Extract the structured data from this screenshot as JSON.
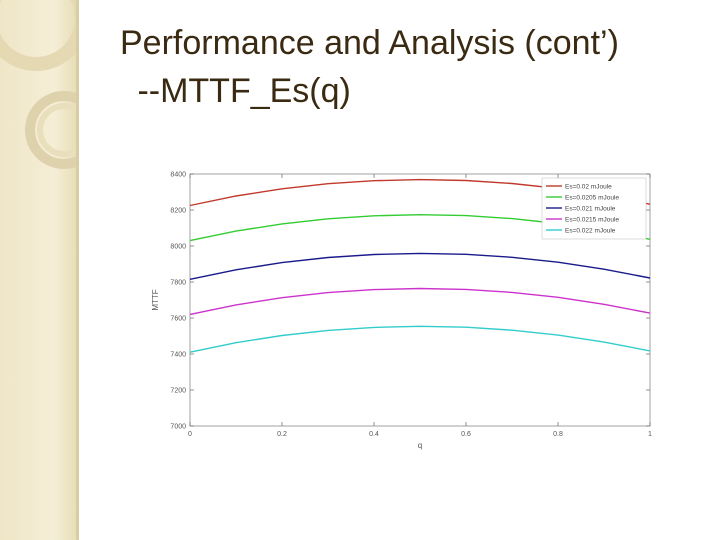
{
  "slide": {
    "title": "Performance and Analysis (cont’)",
    "subtitle": " --MTTF_Es(q)"
  },
  "theme": {
    "sidebar_color": "#f2ead0",
    "title_color": "#3b2a12"
  },
  "chart_data": {
    "type": "line",
    "title": "",
    "xlabel": "q",
    "ylabel": "MTTF",
    "xlim": [
      0,
      1
    ],
    "ylim": [
      7000,
      8400
    ],
    "xticks": [
      0,
      0.2,
      0.4,
      0.6,
      0.8,
      1
    ],
    "xtick_labels": [
      "0",
      "0.2",
      "0.4",
      "0.6",
      "0.8",
      "1"
    ],
    "yticks": [
      7000,
      7200,
      7400,
      7600,
      7800,
      8000,
      8200,
      8400
    ],
    "ytick_labels": [
      "7000",
      "7200",
      "7400",
      "7600",
      "7800",
      "8000",
      "8200",
      "8400"
    ],
    "grid": false,
    "legend": "top-right",
    "x": [
      0,
      0.1,
      0.2,
      0.3,
      0.4,
      0.5,
      0.6,
      0.7,
      0.8,
      0.9,
      1.0
    ],
    "series": [
      {
        "name": "Es=0.02 mJoule",
        "color": "#c0392b",
        "values": [
          8225,
          8278,
          8318,
          8346,
          8363,
          8369,
          8364,
          8347,
          8320,
          8281,
          8232
        ]
      },
      {
        "name": "Es=0.0205 mJoule",
        "color": "#33cc33",
        "values": [
          8030,
          8083,
          8123,
          8151,
          8168,
          8174,
          8169,
          8152,
          8125,
          8086,
          8037
        ]
      },
      {
        "name": "Es=0.021 mJoule",
        "color": "#1a1a8c",
        "values": [
          7815,
          7868,
          7908,
          7936,
          7953,
          7959,
          7954,
          7937,
          7910,
          7871,
          7822
        ]
      },
      {
        "name": "Es=0.0215 mJoule",
        "color": "#cc33cc",
        "values": [
          7620,
          7673,
          7713,
          7741,
          7758,
          7764,
          7759,
          7742,
          7715,
          7676,
          7627
        ]
      },
      {
        "name": "Es=0.022 mJoule",
        "color": "#33cccc",
        "values": [
          7410,
          7463,
          7503,
          7531,
          7548,
          7554,
          7549,
          7532,
          7505,
          7466,
          7417
        ]
      }
    ]
  }
}
